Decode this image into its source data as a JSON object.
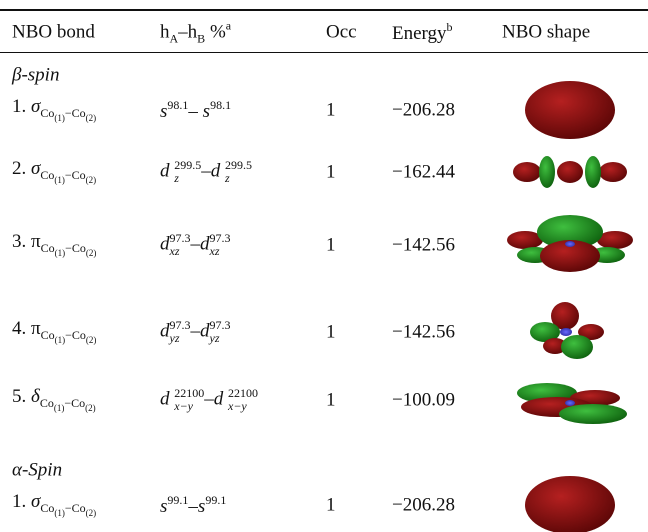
{
  "table": {
    "header": [
      [
        {
          "text": "NBO bond"
        }
      ],
      [
        {
          "text": "h"
        },
        {
          "sub": "A"
        },
        {
          "text": "–h"
        },
        {
          "sub": "B"
        },
        {
          "text": " %"
        },
        {
          "sup": "a"
        }
      ],
      [
        {
          "text": "Occ"
        }
      ],
      [
        {
          "text": "Energy"
        },
        {
          "sup": "b"
        }
      ],
      [
        {
          "text": "NBO shape"
        }
      ]
    ],
    "sections": [
      {
        "label": "β-spin",
        "rows": [
          {
            "bond": [
              {
                "text": "1. "
              },
              {
                "text": "σ",
                "italic": true
              },
              {
                "sub": "Co"
              },
              {
                "sub2": "(1)"
              },
              {
                "sub": "−Co"
              },
              {
                "sub2": "(2)"
              }
            ],
            "hybrid": [
              {
                "text": "s"
              },
              {
                "sup": "98.1"
              },
              {
                "text": "– s"
              },
              {
                "sup": "98.1"
              }
            ],
            "occ": "1",
            "energy": "−206.28"
          },
          {
            "bond": [
              {
                "text": "2. "
              },
              {
                "text": "σ",
                "italic": true
              },
              {
                "sub": "Co"
              },
              {
                "sub2": "(1)"
              },
              {
                "sub": "−Co"
              },
              {
                "sub2": "(2)"
              }
            ],
            "hybrid": [
              {
                "text": "d "
              },
              {
                "sub": "z",
                "sup": "299.5"
              },
              {
                "text": "–d "
              },
              {
                "sub": "z",
                "sup": "299.5"
              }
            ],
            "occ": "1",
            "energy": "−162.44"
          },
          {
            "bond": [
              {
                "text": "3. "
              },
              {
                "text": "π"
              },
              {
                "sub": "Co"
              },
              {
                "sub2": "(1)"
              },
              {
                "sub": "−Co"
              },
              {
                "sub2": "(2)"
              }
            ],
            "hybrid": [
              {
                "text": "d"
              },
              {
                "sub": "xz",
                "sup": "97.3"
              },
              {
                "text": "–d"
              },
              {
                "sub": "xz",
                "sup": "97.3"
              }
            ],
            "occ": "1",
            "energy": "−142.56"
          },
          {
            "bond": [
              {
                "text": "4. "
              },
              {
                "text": "π"
              },
              {
                "sub": "Co"
              },
              {
                "sub2": "(1)"
              },
              {
                "sub": "−Co"
              },
              {
                "sub2": "(2)"
              }
            ],
            "hybrid": [
              {
                "text": "d"
              },
              {
                "sub": "yz",
                "sup": "97.3"
              },
              {
                "text": "–d"
              },
              {
                "sub": "yz",
                "sup": "97.3"
              }
            ],
            "occ": "1",
            "energy": "−142.56"
          },
          {
            "bond": [
              {
                "text": "5. "
              },
              {
                "text": "δ",
                "italic": true
              },
              {
                "sub": "Co"
              },
              {
                "sub2": "(1)"
              },
              {
                "sub": "−Co"
              },
              {
                "sub2": "(2)"
              }
            ],
            "hybrid": [
              {
                "text": "d "
              },
              {
                "sub": "x−y",
                "sup": "22100"
              },
              {
                "text": "–d "
              },
              {
                "sub": "x−y",
                "sup": "22100"
              }
            ],
            "occ": "1",
            "energy": "−100.09"
          }
        ]
      },
      {
        "label": "α-Spin",
        "rows": [
          {
            "bond": [
              {
                "text": "1. "
              },
              {
                "text": "σ",
                "italic": true
              },
              {
                "sub": "Co"
              },
              {
                "sub2": "(1)"
              },
              {
                "sub": "−Co"
              },
              {
                "sub2": "(2)"
              }
            ],
            "hybrid": [
              {
                "text": "s"
              },
              {
                "sup": "99.1"
              },
              {
                "text": "–s"
              },
              {
                "sup": "99.1"
              }
            ],
            "occ": "1",
            "energy": "−206.28"
          }
        ]
      }
    ]
  }
}
